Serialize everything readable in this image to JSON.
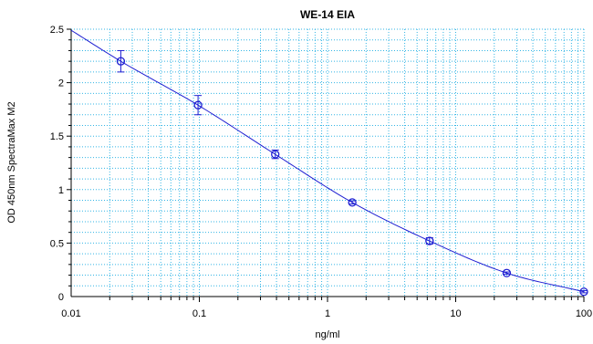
{
  "chart_data": {
    "type": "scatter",
    "title": "WE-14 EIA",
    "xlabel": "ng/ml",
    "ylabel": "OD 450nm SpectraMax M2",
    "x_scale": "log",
    "xlim": [
      0.01,
      100
    ],
    "ylim": [
      0,
      2.5
    ],
    "x_ticks": [
      "0.01",
      "0.1",
      "1",
      "10",
      "100"
    ],
    "y_ticks": [
      "0",
      "0.5",
      "1",
      "1.5",
      "2",
      "2.5"
    ],
    "grid": true,
    "grid_color": "#33b5e5",
    "series_color": "#1f1fd2",
    "series": [
      {
        "points": [
          {
            "x": 0.0244,
            "y": 2.2,
            "err": 0.1
          },
          {
            "x": 0.0977,
            "y": 1.79,
            "err": 0.09
          },
          {
            "x": 0.391,
            "y": 1.33,
            "err": 0.04
          },
          {
            "x": 1.56,
            "y": 0.88,
            "err": 0.015
          },
          {
            "x": 6.25,
            "y": 0.52,
            "err": 0.03
          },
          {
            "x": 25,
            "y": 0.22,
            "err": 0.01
          },
          {
            "x": 100,
            "y": 0.045,
            "err": 0.01
          }
        ]
      }
    ]
  }
}
